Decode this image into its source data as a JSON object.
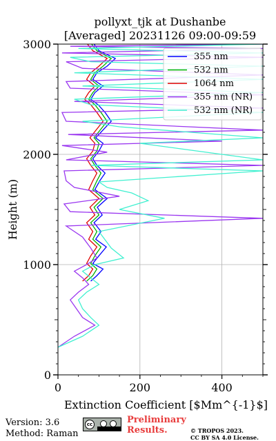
{
  "chart_data": {
    "type": "line",
    "title_line1": "pollyxt_tjk at Dushanbe",
    "title_line2": "[Averaged] 20231126 09:00-09:59",
    "xlabel": "Extinction Coefficient [$Mm^{-1}$]",
    "ylabel": "Height (m)",
    "xlim": [
      0,
      500
    ],
    "ylim": [
      0,
      3000
    ],
    "xticks": [
      "0",
      "200",
      "400"
    ],
    "yticks": [
      "0",
      "1000",
      "2000",
      "3000"
    ],
    "grid": true,
    "legend_position": "top-right",
    "series": [
      {
        "name": "355 nm",
        "color": "#0000ff",
        "x": [
          80,
          95,
          110,
          85,
          100,
          118,
          92,
          105,
          88,
          108,
          96,
          120,
          90,
          102,
          115,
          95,
          85,
          100,
          110,
          92,
          130,
          115,
          98,
          80,
          90,
          110,
          85,
          95,
          120,
          140,
          100,
          88
        ],
        "y": [
          850,
          900,
          960,
          1010,
          1080,
          1160,
          1230,
          1300,
          1380,
          1450,
          1520,
          1600,
          1680,
          1760,
          1830,
          1900,
          1960,
          2030,
          2100,
          2150,
          2300,
          2380,
          2450,
          2500,
          2560,
          2620,
          2680,
          2740,
          2800,
          2870,
          2940,
          3000
        ]
      },
      {
        "name": "532 nm",
        "color": "#00b000",
        "x": [
          70,
          85,
          95,
          80,
          90,
          105,
          85,
          95,
          80,
          100,
          88,
          110,
          85,
          95,
          105,
          90,
          80,
          95,
          100,
          88,
          120,
          105,
          90,
          75,
          85,
          100,
          80,
          90,
          110,
          130,
          95,
          82
        ],
        "y": [
          850,
          900,
          960,
          1010,
          1080,
          1160,
          1230,
          1300,
          1380,
          1450,
          1520,
          1600,
          1680,
          1760,
          1830,
          1900,
          1960,
          2030,
          2100,
          2150,
          2300,
          2380,
          2450,
          2500,
          2560,
          2620,
          2680,
          2740,
          2800,
          2870,
          2940,
          3000
        ]
      },
      {
        "name": "1064 nm",
        "color": "#e00000",
        "x": [
          60,
          75,
          85,
          70,
          80,
          95,
          75,
          85,
          70,
          90,
          78,
          100,
          75,
          85,
          95,
          80,
          70,
          85,
          90,
          78,
          110,
          95,
          80,
          65,
          75,
          90,
          70,
          80,
          100,
          120,
          85,
          72
        ],
        "y": [
          850,
          900,
          960,
          1010,
          1080,
          1160,
          1230,
          1300,
          1380,
          1450,
          1520,
          1600,
          1680,
          1760,
          1830,
          1900,
          1960,
          2030,
          2100,
          2150,
          2300,
          2380,
          2450,
          2500,
          2560,
          2620,
          2680,
          2740,
          2800,
          2870,
          2940,
          3000
        ]
      },
      {
        "name": "355 nm (NR)",
        "color": "#9a36f0",
        "x": [
          0,
          40,
          90,
          60,
          45,
          30,
          50,
          75,
          60,
          40,
          70,
          95,
          80,
          60,
          20,
          500,
          30,
          15,
          150,
          40,
          20,
          15,
          500,
          20,
          120,
          10,
          400,
          25,
          500,
          20,
          10,
          500,
          40,
          500,
          30,
          20,
          500,
          60,
          20,
          500,
          10,
          500,
          30,
          500
        ],
        "y": [
          250,
          350,
          450,
          520,
          600,
          680,
          750,
          820,
          880,
          940,
          1000,
          1060,
          1150,
          1250,
          1350,
          1420,
          1480,
          1550,
          1620,
          1700,
          1760,
          1850,
          1900,
          1950,
          2020,
          2080,
          2120,
          2180,
          2220,
          2300,
          2380,
          2420,
          2480,
          2540,
          2600,
          2660,
          2720,
          2780,
          2840,
          2880,
          2920,
          2960,
          2980,
          3000
        ]
      },
      {
        "name": "532 nm (NR)",
        "color": "#40f0d0",
        "x": [
          0,
          60,
          100,
          80,
          60,
          50,
          70,
          100,
          80,
          60,
          90,
          160,
          130,
          100,
          260,
          150,
          220,
          180,
          120,
          100,
          500,
          80,
          500,
          300,
          200,
          500,
          150,
          60,
          500,
          80,
          40,
          500,
          60,
          500,
          40,
          500,
          80,
          30,
          500,
          50,
          500
        ],
        "y": [
          250,
          350,
          450,
          520,
          600,
          680,
          750,
          820,
          880,
          940,
          1000,
          1060,
          1150,
          1300,
          1420,
          1500,
          1580,
          1650,
          1700,
          1750,
          1850,
          1900,
          1950,
          2050,
          2100,
          2150,
          2250,
          2300,
          2380,
          2450,
          2500,
          2560,
          2620,
          2680,
          2740,
          2800,
          2840,
          2880,
          2920,
          2960,
          3000
        ]
      }
    ]
  },
  "footer": {
    "version": "Version: 3.6",
    "method": "Method: Raman",
    "preliminary_line1": "Preliminary",
    "preliminary_line2": "Results.",
    "copyright_line1": "© TROPOS 2023.",
    "copyright_line2": "CC BY SA 4.0 License."
  },
  "license_badge": {
    "icon": "cc-by-sa-icon",
    "background": "#aab2ab"
  }
}
